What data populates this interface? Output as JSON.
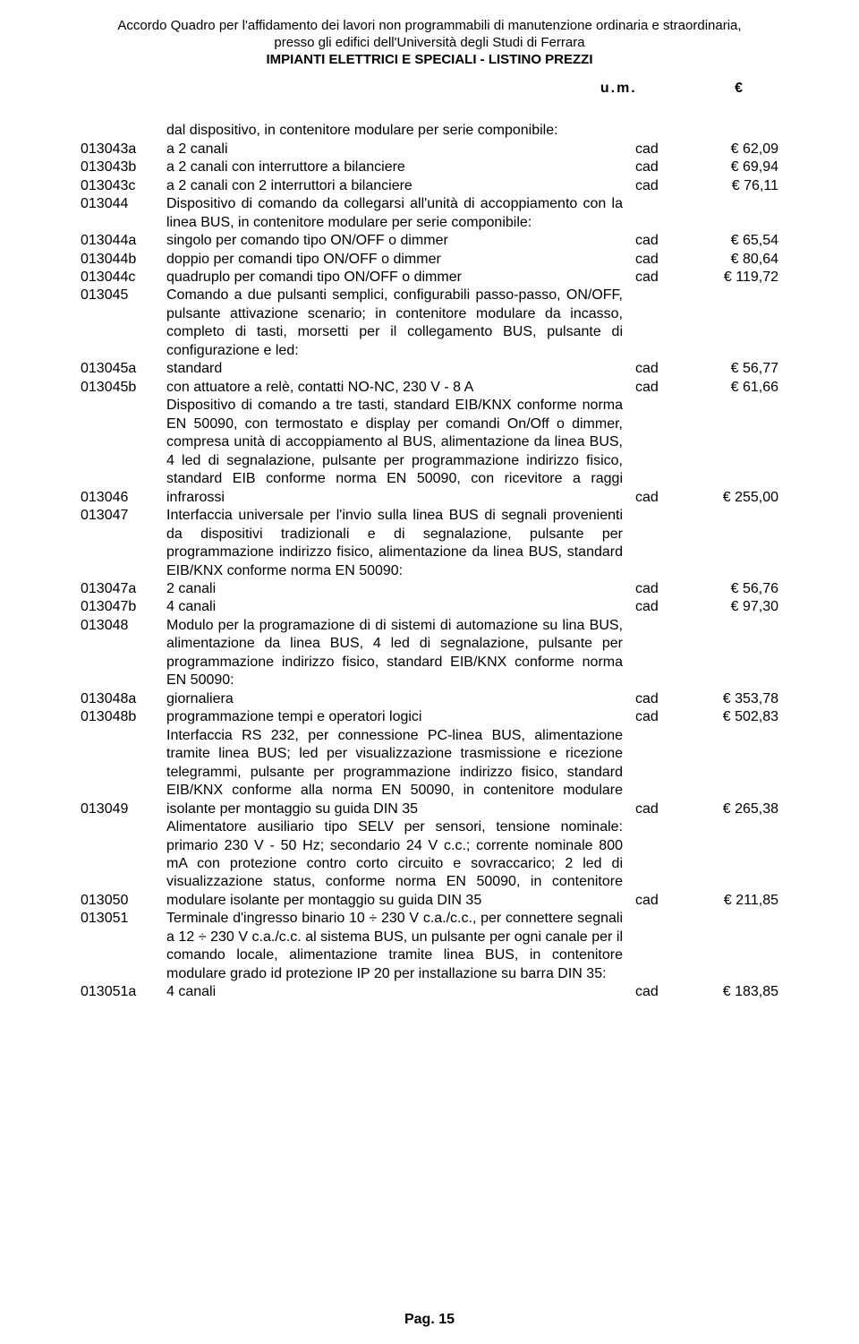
{
  "header": {
    "line1": "Accordo Quadro per l'affidamento dei lavori non programmabili di manutenzione ordinaria e straordinaria,",
    "line2": "presso gli edifici dell'Università degli Studi di Ferrara",
    "line3": "IMPIANTI ELETTRICI E SPECIALI -  LISTINO PREZZI"
  },
  "columns": {
    "um": "u.m.",
    "euro": "€"
  },
  "rows": [
    {
      "code": "",
      "desc": "dal dispositivo, in contenitore modulare per serie componibile:",
      "unit": "",
      "price": ""
    },
    {
      "code": "013043a",
      "desc": "a 2 canali",
      "unit": "cad",
      "price": "€ 62,09"
    },
    {
      "code": "013043b",
      "desc": "a 2 canali con interruttore a bilanciere",
      "unit": "cad",
      "price": "€ 69,94"
    },
    {
      "code": "013043c",
      "desc": "a 2 canali con 2 interruttori a bilanciere",
      "unit": "cad",
      "price": "€ 76,11"
    },
    {
      "code": "013044",
      "desc": "Dispositivo di comando da collegarsi all'unità di accoppiamento con la linea BUS, in contenitore modulare per serie componibile:",
      "unit": "",
      "price": ""
    },
    {
      "code": "013044a",
      "desc": "singolo per comando tipo ON/OFF o dimmer",
      "unit": "cad",
      "price": "€ 65,54"
    },
    {
      "code": "013044b",
      "desc": "doppio per comandi tipo ON/OFF o dimmer",
      "unit": "cad",
      "price": "€ 80,64"
    },
    {
      "code": "013044c",
      "desc": "quadruplo per comandi tipo ON/OFF o dimmer",
      "unit": "cad",
      "price": "€ 119,72"
    },
    {
      "code": "013045",
      "desc": "Comando a due pulsanti semplici, configurabili passo-passo, ON/OFF, pulsante attivazione scenario; in contenitore modulare da incasso, completo di tasti, morsetti per il collegamento BUS, pulsante di configurazione e led:",
      "unit": "",
      "price": ""
    },
    {
      "code": "013045a",
      "desc": "standard",
      "unit": "cad",
      "price": "€ 56,77"
    },
    {
      "code": "013045b",
      "desc": "con attuatore a relè, contatti NO-NC, 230 V - 8 A",
      "unit": "cad",
      "price": "€ 61,66"
    },
    {
      "code": "013046",
      "desc": "Dispositivo di comando a tre tasti, standard EIB/KNX conforme norma EN 50090, con termostato e display per comandi On/Off o dimmer, compresa unità di accoppiamento al BUS, alimentazione da linea BUS, 4 led di segnalazione, pulsante per programmazione indirizzo fisico, standard EIB conforme norma EN 50090, con ricevitore a raggi infrarossi",
      "unit": "cad",
      "price": "€ 255,00"
    },
    {
      "code": "013047",
      "desc": "Interfaccia universale per l'invio sulla linea BUS di segnali provenienti da dispositivi tradizionali e di segnalazione, pulsante per programmazione indirizzo fisico, alimentazione da linea BUS, standard EIB/KNX conforme norma EN 50090:",
      "unit": "",
      "price": ""
    },
    {
      "code": "013047a",
      "desc": "2 canali",
      "unit": "cad",
      "price": "€ 56,76"
    },
    {
      "code": "013047b",
      "desc": "4 canali",
      "unit": "cad",
      "price": "€ 97,30"
    },
    {
      "code": "013048",
      "desc": "Modulo per la programazione di di sistemi di automazione su lina BUS, alimentazione da linea BUS, 4 led di segnalazione, pulsante per programmazione indirizzo fisico, standard EIB/KNX conforme norma EN 50090:",
      "unit": "",
      "price": ""
    },
    {
      "code": "013048a",
      "desc": "giornaliera",
      "unit": "cad",
      "price": "€ 353,78"
    },
    {
      "code": "013048b",
      "desc": "programmazione tempi e operatori logici",
      "unit": "cad",
      "price": "€ 502,83"
    },
    {
      "code": "013049",
      "desc": "Interfaccia RS 232, per connessione PC-linea BUS, alimentazione tramite linea BUS; led per visualizzazione trasmissione e ricezione telegrammi, pulsante per programmazione indirizzo fisico, standard EIB/KNX conforme alla norma EN 50090, in contenitore modulare isolante per montaggio su guida DIN 35",
      "unit": "cad",
      "price": "€ 265,38"
    },
    {
      "code": "013050",
      "desc": "Alimentatore ausiliario tipo SELV per sensori, tensione nominale: primario 230 V - 50 Hz; secondario 24 V c.c.; corrente nominale 800 mA con protezione contro corto circuito e sovraccarico; 2 led di visualizzazione status, conforme norma EN 50090, in contenitore modulare isolante per montaggio su guida DIN 35",
      "unit": "cad",
      "price": "€ 211,85"
    },
    {
      "code": "013051",
      "desc": "Terminale d'ingresso binario 10 ÷ 230 V c.a./c.c., per connettere segnali a 12 ÷ 230 V c.a./c.c. al sistema BUS, un pulsante per ogni canale per il comando locale, alimentazione tramite linea BUS, in contenitore modulare grado id protezione IP 20 per installazione su barra DIN 35:",
      "unit": "",
      "price": ""
    },
    {
      "code": "013051a",
      "desc": "4 canali",
      "unit": "cad",
      "price": "€ 183,85"
    }
  ],
  "unit_price_align": {
    "013046_at_end": true,
    "013049_at_end": true,
    "013050_at_end": true
  },
  "footer": "Pag. 15"
}
